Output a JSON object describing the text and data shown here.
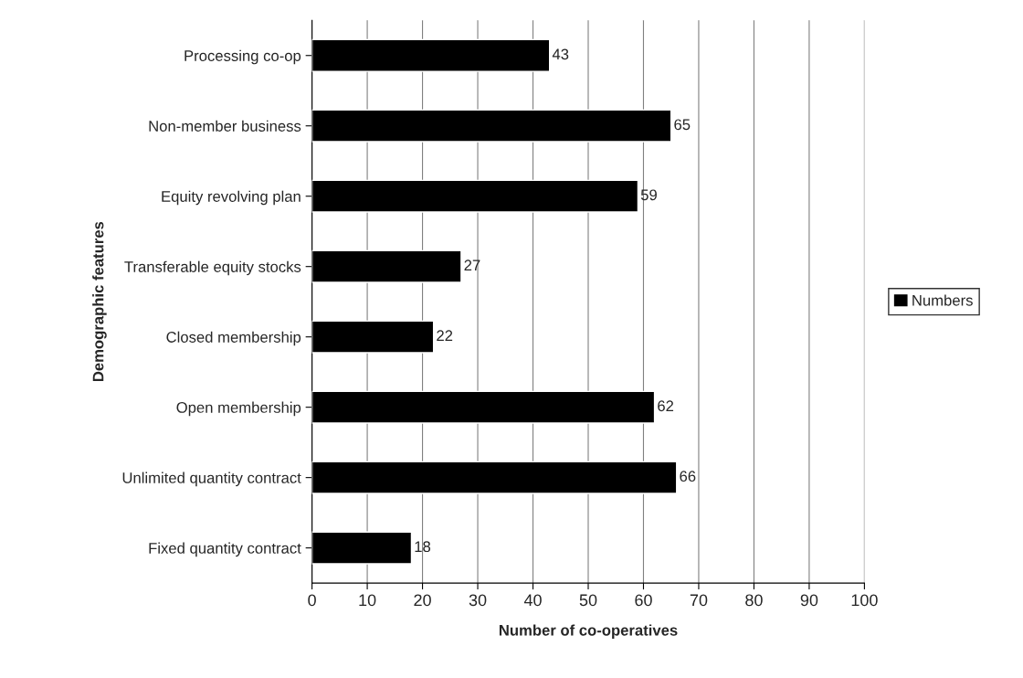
{
  "chart_data": {
    "type": "bar",
    "orientation": "horizontal",
    "categories": [
      "Processing co-op",
      "Non-member business",
      "Equity revolving plan",
      "Transferable equity stocks",
      "Closed membership",
      "Open membership",
      "Unlimited quantity contract",
      "Fixed quantity contract"
    ],
    "series": [
      {
        "name": "Numbers",
        "color": "#000000",
        "values": [
          43,
          65,
          59,
          27,
          22,
          62,
          66,
          18
        ]
      }
    ],
    "xlabel": "Number of co-operatives",
    "ylabel": "Demographic features",
    "xlim": [
      0,
      100
    ],
    "xticks": [
      0,
      10,
      20,
      30,
      40,
      50,
      60,
      70,
      80,
      90,
      100
    ],
    "grid": "x",
    "legend": "right",
    "data_labels": true
  }
}
